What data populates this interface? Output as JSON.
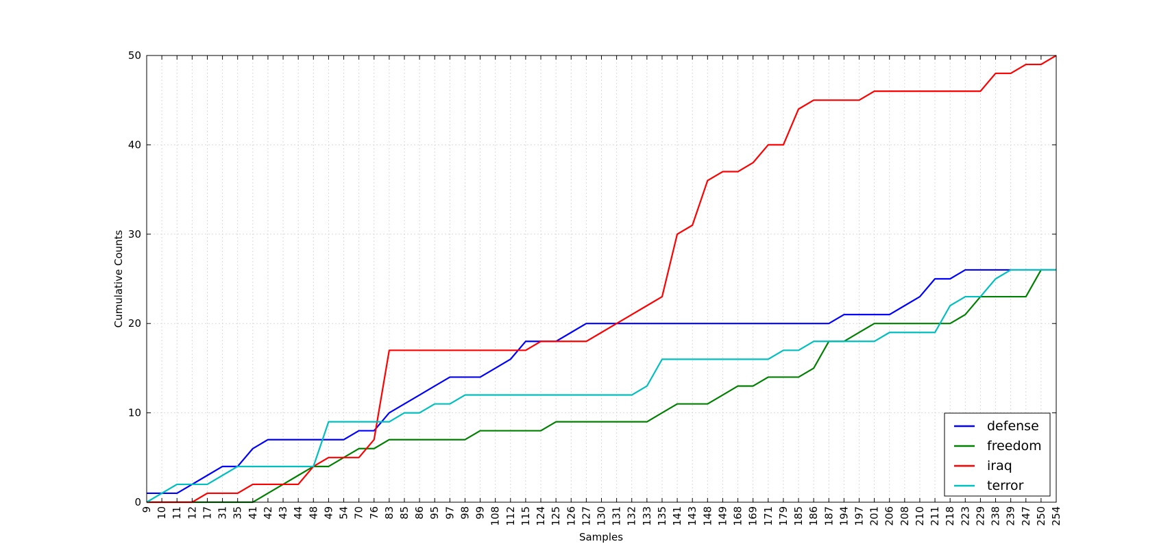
{
  "chart_data": {
    "type": "line",
    "xlabel": "Samples",
    "ylabel": "Cumulative Counts",
    "categories": [
      "9",
      "10",
      "11",
      "12",
      "17",
      "31",
      "35",
      "41",
      "42",
      "43",
      "44",
      "48",
      "49",
      "54",
      "70",
      "76",
      "83",
      "85",
      "86",
      "95",
      "97",
      "98",
      "99",
      "108",
      "112",
      "115",
      "124",
      "125",
      "126",
      "127",
      "130",
      "131",
      "132",
      "133",
      "135",
      "141",
      "143",
      "148",
      "149",
      "168",
      "169",
      "171",
      "179",
      "185",
      "186",
      "187",
      "194",
      "197",
      "201",
      "206",
      "208",
      "210",
      "211",
      "218",
      "223",
      "229",
      "238",
      "239",
      "247",
      "250",
      "254"
    ],
    "ylim": [
      0,
      50
    ],
    "yticks": [
      0,
      10,
      20,
      30,
      40,
      50
    ],
    "grid": true,
    "legend_position": "lower-right",
    "series": [
      {
        "name": "defense",
        "color": "#0000ff",
        "values": [
          1,
          1,
          1,
          2,
          3,
          4,
          4,
          6,
          7,
          7,
          7,
          7,
          7,
          7,
          8,
          8,
          10,
          11,
          12,
          13,
          14,
          14,
          14,
          15,
          16,
          18,
          18,
          18,
          19,
          20,
          20,
          20,
          20,
          20,
          20,
          20,
          20,
          20,
          20,
          20,
          20,
          20,
          20,
          20,
          20,
          20,
          21,
          21,
          21,
          21,
          22,
          23,
          25,
          25,
          26,
          26,
          26,
          26,
          26,
          26,
          26
        ]
      },
      {
        "name": "freedom",
        "color": "#008000",
        "values": [
          0,
          0,
          0,
          0,
          0,
          0,
          0,
          0,
          1,
          2,
          3,
          4,
          4,
          5,
          6,
          6,
          7,
          7,
          7,
          7,
          7,
          7,
          8,
          8,
          8,
          8,
          8,
          9,
          9,
          9,
          9,
          9,
          9,
          9,
          10,
          11,
          11,
          11,
          12,
          13,
          13,
          14,
          14,
          14,
          15,
          18,
          18,
          19,
          20,
          20,
          20,
          20,
          20,
          20,
          21,
          23,
          23,
          23,
          23,
          26,
          26
        ]
      },
      {
        "name": "iraq",
        "color": "#ff0000",
        "values": [
          0,
          0,
          0,
          0,
          1,
          1,
          1,
          2,
          2,
          2,
          2,
          4,
          5,
          5,
          5,
          7,
          17,
          17,
          17,
          17,
          17,
          17,
          17,
          17,
          17,
          17,
          18,
          18,
          18,
          18,
          19,
          20,
          21,
          22,
          23,
          30,
          31,
          36,
          37,
          37,
          38,
          40,
          40,
          44,
          45,
          45,
          45,
          45,
          46,
          46,
          46,
          46,
          46,
          46,
          46,
          46,
          48,
          48,
          49,
          49,
          50
        ]
      },
      {
        "name": "terror",
        "color": "#00bfbf",
        "values": [
          0,
          1,
          2,
          2,
          2,
          3,
          4,
          4,
          4,
          4,
          4,
          4,
          9,
          9,
          9,
          9,
          9,
          10,
          10,
          11,
          11,
          12,
          12,
          12,
          12,
          12,
          12,
          12,
          12,
          12,
          12,
          12,
          12,
          13,
          16,
          16,
          16,
          16,
          16,
          16,
          16,
          16,
          17,
          17,
          18,
          18,
          18,
          18,
          18,
          19,
          19,
          19,
          19,
          22,
          23,
          23,
          25,
          26,
          26,
          26,
          26
        ]
      }
    ]
  }
}
